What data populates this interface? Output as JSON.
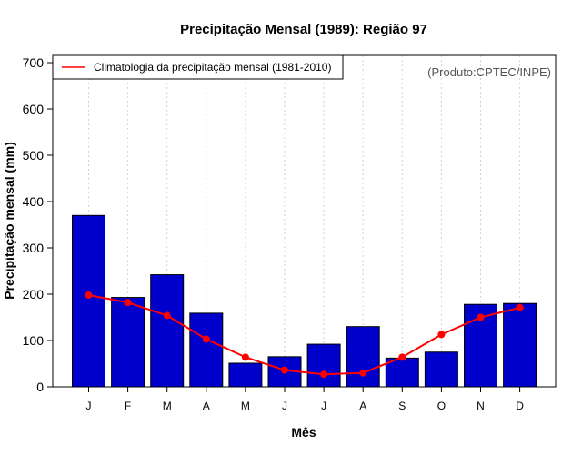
{
  "chart_data": {
    "type": "bar",
    "title": "Precipitação Mensal (1989): Região 97",
    "xlabel": "Mês",
    "ylabel": "Precipitação mensal (mm)",
    "ylim": [
      0,
      700
    ],
    "yticks": [
      0,
      100,
      200,
      300,
      400,
      500,
      600,
      700
    ],
    "categories": [
      "J",
      "F",
      "M",
      "A",
      "M",
      "J",
      "J",
      "A",
      "S",
      "O",
      "N",
      "D"
    ],
    "series": [
      {
        "name": "Precipitação mensal (1989)",
        "type": "bar",
        "color": "#0000cc",
        "values": [
          370,
          193,
          242,
          159,
          51,
          65,
          92,
          130,
          62,
          75,
          178,
          180
        ]
      },
      {
        "name": "Climatologia da precipitação mensal (1981-2010)",
        "type": "line",
        "color": "#ff0000",
        "values": [
          198,
          182,
          154,
          103,
          64,
          36,
          27,
          30,
          64,
          113,
          150,
          171
        ]
      }
    ],
    "legend": {
      "entries": [
        "Climatologia da precipitação mensal (1981-2010)"
      ],
      "placement": "top-left"
    },
    "annotations": [
      "(Produto:CPTEC/INPE)"
    ],
    "grid": "vertical dotted"
  }
}
